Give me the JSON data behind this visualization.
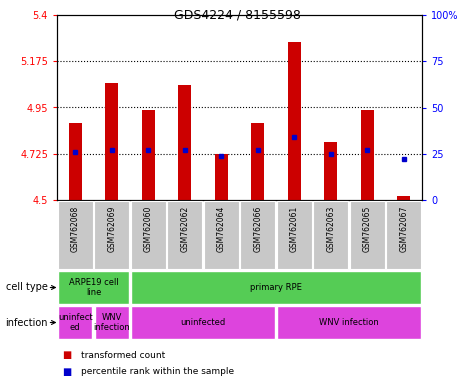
{
  "title": "GDS4224 / 8155598",
  "samples": [
    "GSM762068",
    "GSM762069",
    "GSM762060",
    "GSM762062",
    "GSM762064",
    "GSM762066",
    "GSM762061",
    "GSM762063",
    "GSM762065",
    "GSM762067"
  ],
  "transformed_counts": [
    4.875,
    5.07,
    4.94,
    5.06,
    4.725,
    4.875,
    5.27,
    4.78,
    4.94,
    4.52
  ],
  "percentile_ranks": [
    26,
    27,
    27,
    27,
    24,
    27,
    34,
    25,
    27,
    22
  ],
  "ymin": 4.5,
  "ymax": 5.4,
  "yticks": [
    4.5,
    4.725,
    4.95,
    5.175,
    5.4
  ],
  "ytick_labels": [
    "4.5",
    "4.725",
    "4.95",
    "5.175",
    "5.4"
  ],
  "right_yticks": [
    0,
    25,
    50,
    75,
    100
  ],
  "right_ytick_labels": [
    "0",
    "25",
    "50",
    "75",
    "100%"
  ],
  "bar_color": "#cc0000",
  "dot_color": "#0000cc",
  "grid_lines": [
    4.725,
    4.95,
    5.175
  ],
  "cell_type_row_color": "#55cc55",
  "infection_row_color": "#dd44dd",
  "sample_bg_color": "#c8c8c8",
  "ct_groups": [
    {
      "label": "ARPE19 cell\nline",
      "start": 0,
      "end": 2
    },
    {
      "label": "primary RPE",
      "start": 2,
      "end": 10
    }
  ],
  "inf_groups": [
    {
      "label": "uninfect\ned",
      "start": 0,
      "end": 1
    },
    {
      "label": "WNV\ninfection",
      "start": 1,
      "end": 2
    },
    {
      "label": "uninfected",
      "start": 2,
      "end": 6
    },
    {
      "label": "WNV infection",
      "start": 6,
      "end": 10
    }
  ],
  "legend_items": [
    {
      "color": "#cc0000",
      "label": "transformed count"
    },
    {
      "color": "#0000cc",
      "label": "percentile rank within the sample"
    }
  ]
}
